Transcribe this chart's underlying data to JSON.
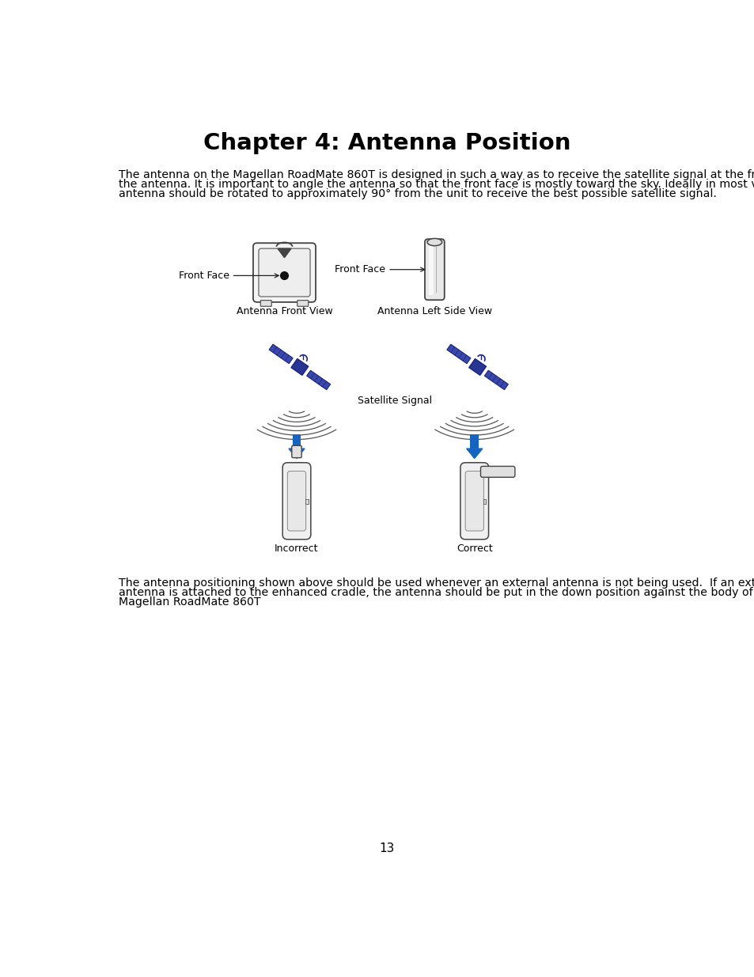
{
  "title": "Chapter 4: Antenna Position",
  "title_fontsize": 21,
  "body_fontsize": 10.2,
  "label_fontsize": 9,
  "bg_color": "#ffffff",
  "text_color": "#000000",
  "para1_line1": "The antenna on the Magellan RoadMate 860T is designed in such a way as to receive the satellite signal at the front face of",
  "para1_line2": "the antenna. It is important to angle the antenna so that the front face is mostly toward the sky. Ideally in most vehicles, the",
  "para1_line3": "antenna should be rotated to approximately 90° from the unit to receive the best possible satellite signal.",
  "para2_line1": "The antenna positioning shown above should be used whenever an external antenna is not being used.  If an external",
  "para2_line2": "antenna is attached to the enhanced cradle, the antenna should be put in the down position against the body of the",
  "para2_line3": "Magellan RoadMate 860T",
  "label_front_face": "Front Face",
  "label_antenna_front": "Antenna Front View",
  "label_antenna_left": "Antenna Left Side View",
  "label_incorrect": "Incorrect",
  "label_correct": "Correct",
  "label_satellite": "Satellite Signal",
  "page_number": "13",
  "diagram_color": "#333333",
  "satellite_dark": "#1a237e",
  "satellite_mid": "#283593",
  "satellite_panel": "#3949ab",
  "satellite_light": "#5c6bc0",
  "wave_color": "#555555",
  "arrow_blue": "#1565c0",
  "arrow_blue_light": "#42a5f5"
}
